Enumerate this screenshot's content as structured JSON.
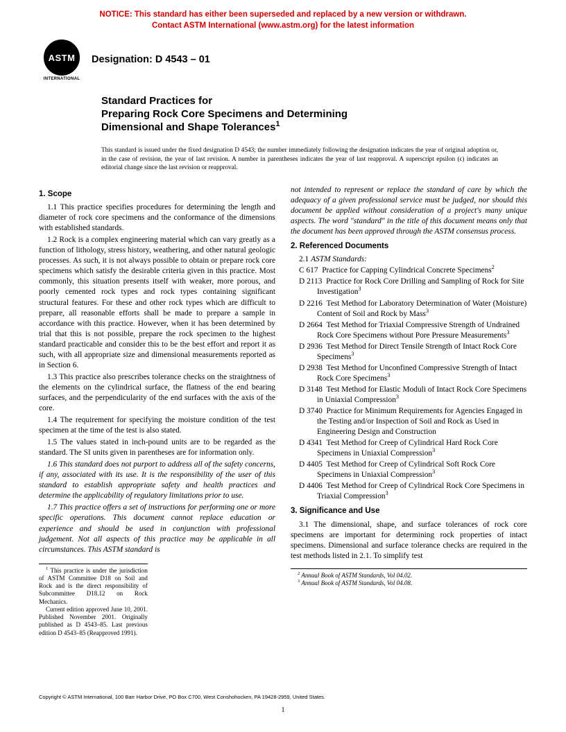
{
  "notice": {
    "line1": "NOTICE: This standard has either been superseded and replaced by a new version or withdrawn.",
    "line2": "Contact ASTM International (www.astm.org) for the latest information"
  },
  "logo": {
    "main": "ASTM",
    "sub": "INTERNATIONAL"
  },
  "designation": "Designation: D 4543 – 01",
  "title": {
    "line1": "Standard Practices for",
    "line2": "Preparing Rock Core Specimens and Determining",
    "line3": "Dimensional and Shape Tolerances"
  },
  "issuance": "This standard is issued under the fixed designation D 4543; the number immediately following the designation indicates the year of original adoption or, in the case of revision, the year of last revision. A number in parentheses indicates the year of last reapproval. A superscript epsilon (ϵ) indicates an editorial change since the last revision or reapproval.",
  "sections": {
    "scope_head": "1. Scope",
    "s11": "1.1 This practice specifies procedures for determining the length and diameter of rock core specimens and the conformance of the dimensions with established standards.",
    "s12": "1.2 Rock is a complex engineering material which can vary greatly as a function of lithology, stress history, weathering, and other natural geologic processes. As such, it is not always possible to obtain or prepare rock core specimens which satisfy the desirable criteria given in this practice. Most commonly, this situation presents itself with weaker, more porous, and poorly cemented rock types and rock types containing significant structural features. For these and other rock types which are difficult to prepare, all reasonable efforts shall be made to prepare a sample in accordance with this practice. However, when it has been determined by trial that this is not possible, prepare the rock specimen to the highest standard practicable and consider this to be the best effort and report it as such, with all appropriate size and dimensional measurements reported as in Section 6.",
    "s13": "1.3 This practice also prescribes tolerance checks on the straightness of the elements on the cylindrical surface, the flatness of the end bearing surfaces, and the perpendicularity of the end surfaces with the axis of the core.",
    "s14": "1.4 The requirement for specifying the moisture condition of the test specimen at the time of the test is also stated.",
    "s15": "1.5 The values stated in inch-pound units are to be regarded as the standard. The SI units given in parentheses are for information only.",
    "s16": "1.6 This standard does not purport to address all of the safety concerns, if any, associated with its use. It is the responsibility of the user of this standard to establish appropriate safety and health practices and determine the applicability of regulatory limitations prior to use.",
    "s17a": "1.7 This practice offers a set of instructions for performing one or more specific operations. This document cannot replace education or experience and should be used in conjunction with professional judgement. Not all aspects of this practice may be applicable in all circumstances. This ASTM standard is",
    "s17b": "not intended to represent or replace the standard of care by which the adequacy of a given professional service must be judged, nor should this document be applied without consideration of a project's many unique aspects. The word \"standard\" in the title of this document means only that the document has been approved through the ASTM consensus process.",
    "ref_head": "2. Referenced Documents",
    "ref_sub": "2.1 ASTM Standards:",
    "refs": [
      {
        "code": "C 617",
        "text": "Practice for Capping Cylindrical Concrete Specimens",
        "sup": "2"
      },
      {
        "code": "D 2113",
        "text": "Practice for Rock Core Drilling and Sampling of Rock for Site Investigation",
        "sup": "3"
      },
      {
        "code": "D 2216",
        "text": "Test Method for Laboratory Determination of Water (Moisture) Content of Soil and Rock by Mass",
        "sup": "3"
      },
      {
        "code": "D 2664",
        "text": "Test Method for Triaxial Compressive Strength of Undrained Rock Core Specimens without Pore Pressure Measurements",
        "sup": "3"
      },
      {
        "code": "D 2936",
        "text": "Test Method for Direct Tensile Strength of Intact Rock Core Specimens",
        "sup": "3"
      },
      {
        "code": "D 2938",
        "text": "Test Method for Unconfined Compressive Strength of Intact Rock Core Specimens",
        "sup": "3"
      },
      {
        "code": "D 3148",
        "text": "Test Method for Elastic Moduli of Intact Rock Core Specimens in Uniaxial Compression",
        "sup": "3"
      },
      {
        "code": "D 3740",
        "text": "Practice for Minimum Requirements for Agencies Engaged in the Testing and/or Inspection of Soil and Rock as Used in Engineering Design and Construction",
        "sup": ""
      },
      {
        "code": "D 4341",
        "text": "Test Method for Creep of Cylindrical Hard Rock Core Specimens in Uniaxial Compression",
        "sup": "3"
      },
      {
        "code": "D 4405",
        "text": "Test Method for Creep of Cylindrical Soft Rock Core Specimens in Uniaxial Compression",
        "sup": "3"
      },
      {
        "code": "D 4406",
        "text": "Test Method for Creep of Cylindrical Rock Core Specimens in Triaxial Compression",
        "sup": "3"
      }
    ],
    "sig_head": "3. Significance and Use",
    "s31": "3.1 The dimensional, shape, and surface tolerances of rock core specimens are important for determining rock properties of intact specimens. Dimensional and surface tolerance checks are required in the test methods listed in 2.1. To simplify test"
  },
  "footnotes": {
    "f1": " This practice is under the jurisdiction of ASTM Committee D18 on Soil and Rock and is the direct responsibility of Subcommittee D18.12 on Rock Mechanics.",
    "f1b": "Current edition approved June 10, 2001. Published November 2001. Originally published as D 4543–85. Last previous edition D 4543–85 (Reapproved 1991).",
    "f2": " Annual Book of ASTM Standards, Vol 04.02.",
    "f3": " Annual Book of ASTM Standards, Vol 04.08."
  },
  "copyright": "Copyright © ASTM International, 100 Barr Harbor Drive, PO Box C700, West Conshohocken, PA 19428-2959, United States.",
  "pagenum": "1"
}
